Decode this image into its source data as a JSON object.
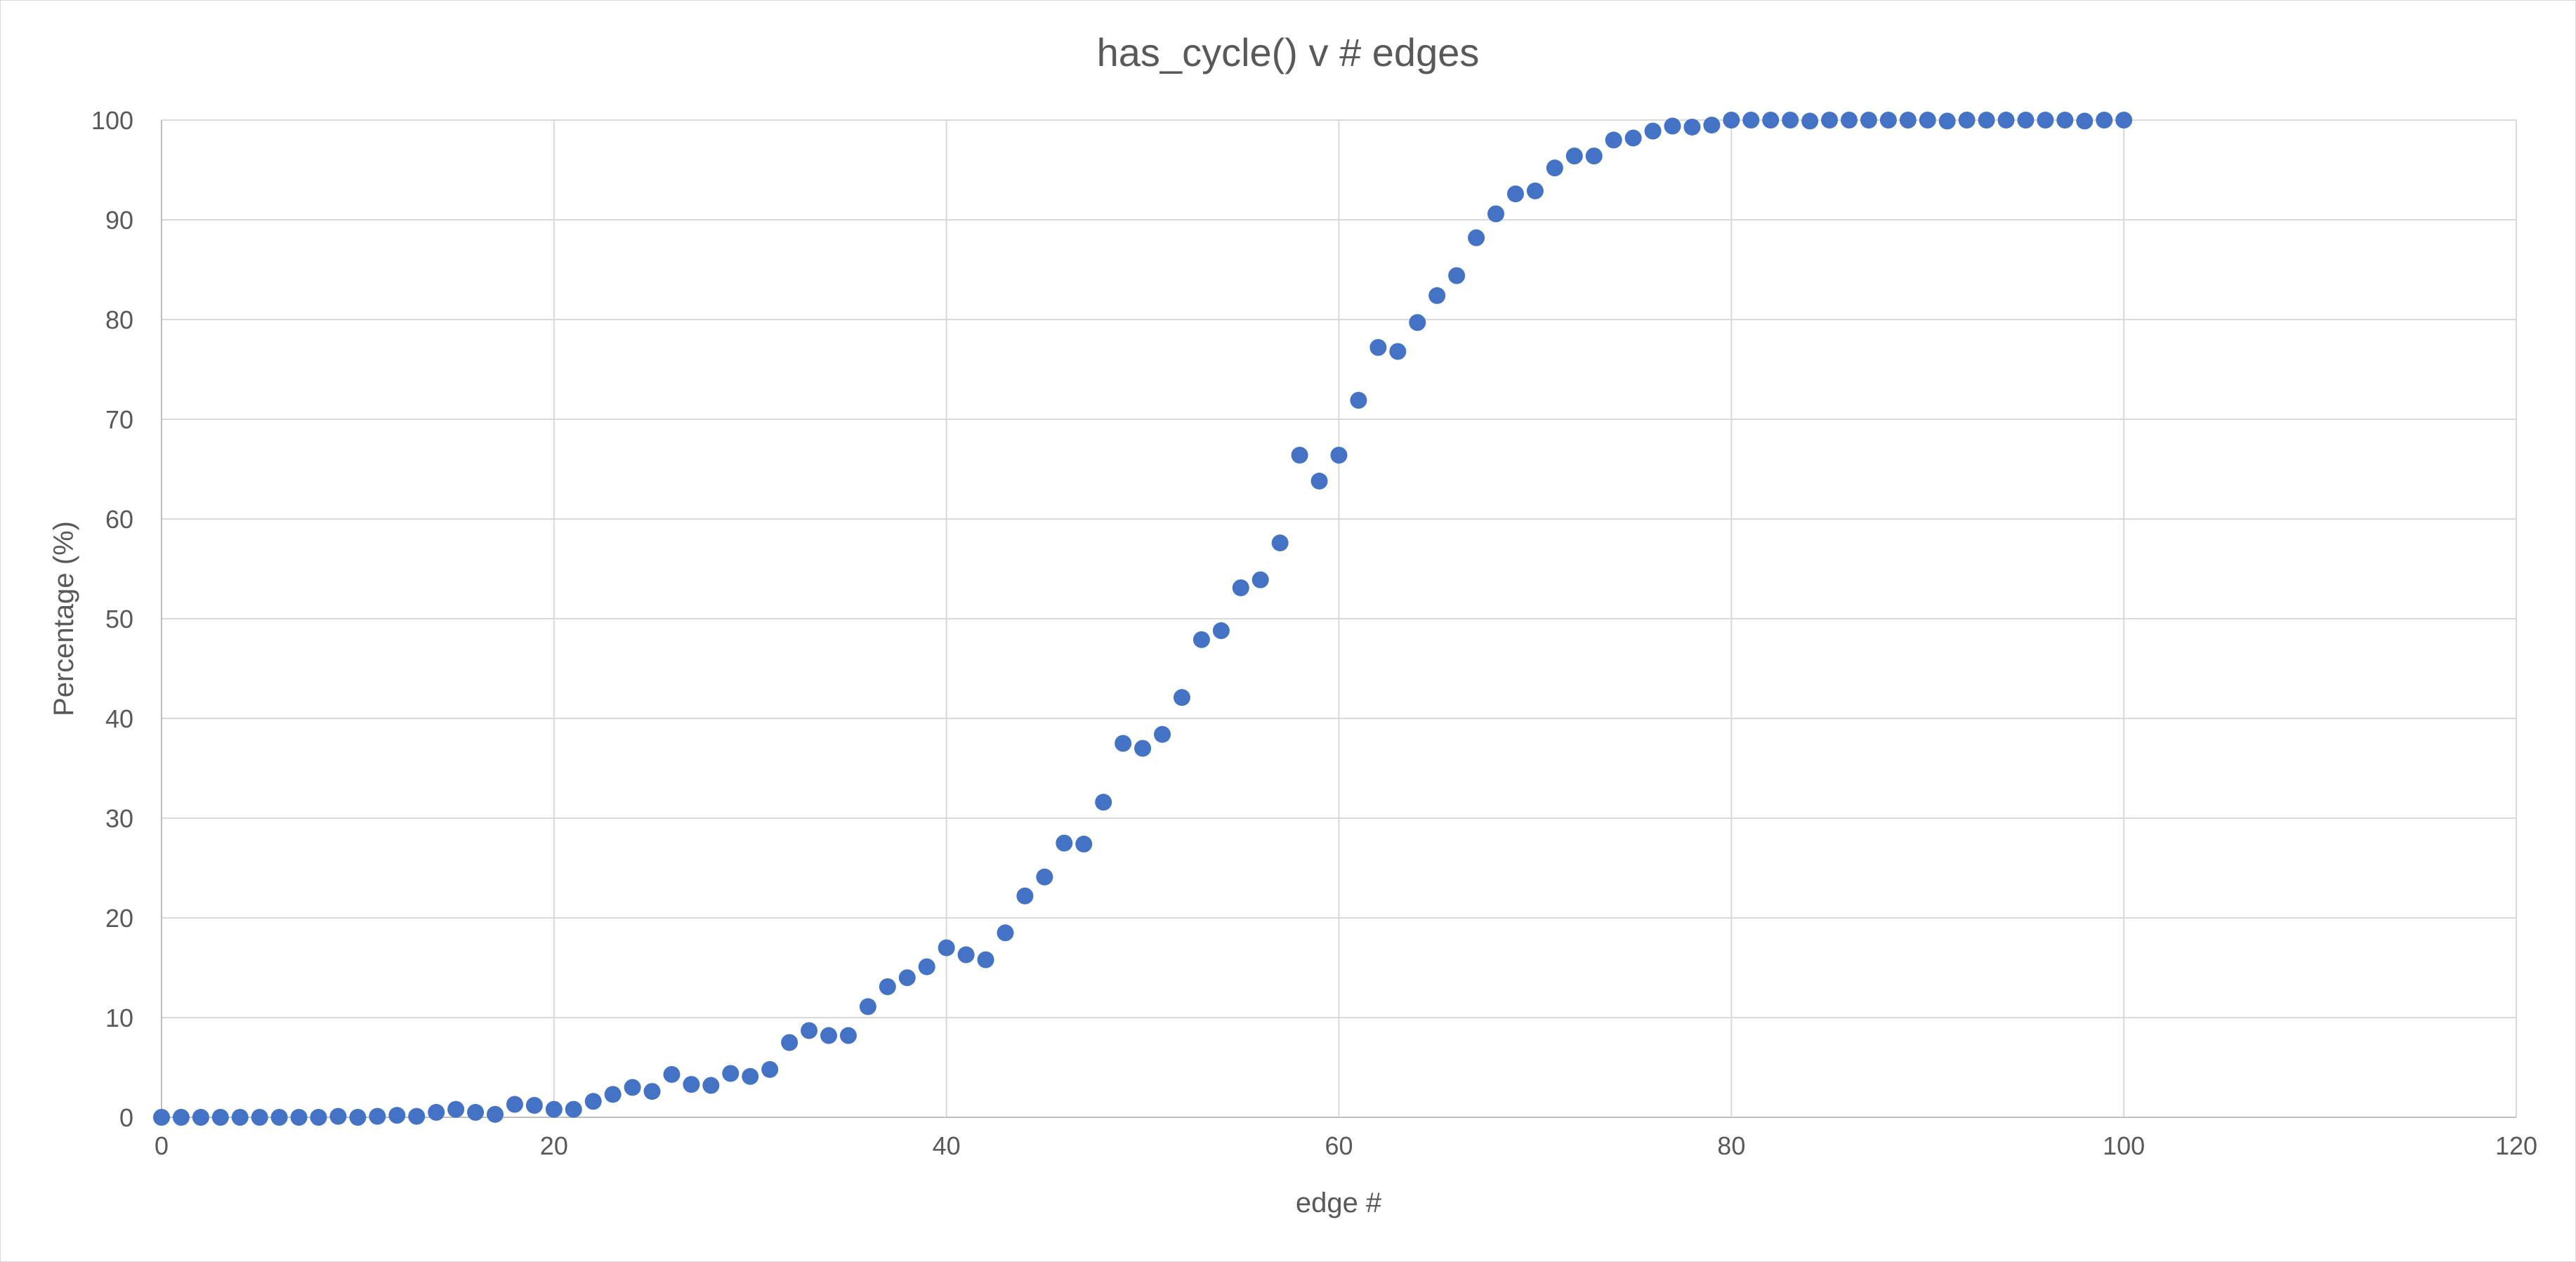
{
  "chart_data": {
    "type": "scatter",
    "title": "has_cycle() v # edges",
    "xlabel": "edge #",
    "ylabel": "Percentage (%)",
    "xlim": [
      0,
      120
    ],
    "ylim": [
      0,
      100
    ],
    "x_ticks": [
      0,
      20,
      40,
      60,
      80,
      100,
      120
    ],
    "y_ticks": [
      0,
      10,
      20,
      30,
      40,
      50,
      60,
      70,
      80,
      90,
      100
    ],
    "grid": true,
    "legend": "none",
    "marker_color": "#4472c4",
    "series": [
      {
        "x": [
          0,
          1,
          2,
          3,
          4,
          5,
          6,
          7,
          8,
          9,
          10,
          11,
          12,
          13,
          14,
          15,
          16,
          17,
          18,
          19,
          20,
          21,
          22,
          23,
          24,
          25,
          26,
          27,
          28,
          29,
          30,
          31,
          32,
          33,
          34,
          35,
          36,
          37,
          38,
          39,
          40,
          41,
          42,
          43,
          44,
          45,
          46,
          47,
          48,
          49,
          50,
          51,
          52,
          53,
          54,
          55,
          56,
          57,
          58,
          59,
          60,
          61,
          62,
          63,
          64,
          65,
          66,
          67,
          68,
          69,
          70,
          71,
          72,
          73,
          74,
          75,
          76,
          77,
          78,
          79,
          80,
          81,
          82,
          83,
          84,
          85,
          86,
          87,
          88,
          89,
          90,
          91,
          92,
          93,
          94,
          95,
          96,
          97,
          98,
          99,
          100
        ],
        "y": [
          0,
          0,
          0,
          0,
          0,
          0,
          0,
          0,
          0,
          0.1,
          0,
          0.1,
          0.2,
          0.1,
          0.5,
          0.8,
          0.5,
          0.3,
          1.3,
          1.2,
          0.8,
          0.8,
          1.6,
          2.3,
          3,
          2.6,
          4.3,
          3.3,
          3.2,
          4.4,
          4.1,
          4.8,
          7.5,
          8.7,
          8.2,
          8.2,
          11.1,
          13.1,
          14,
          15.1,
          17,
          16.3,
          15.8,
          18.5,
          22.2,
          24.1,
          27.5,
          27.4,
          31.6,
          37.5,
          37,
          38.4,
          42.1,
          47.9,
          48.8,
          53.1,
          53.9,
          57.6,
          66.4,
          63.8,
          66.4,
          71.9,
          77.2,
          76.8,
          79.7,
          82.4,
          84.4,
          88.2,
          90.6,
          92.6,
          92.9,
          95.2,
          96.4,
          96.4,
          98,
          98.2,
          98.9,
          99.4,
          99.3,
          99.5,
          100,
          100,
          100,
          100,
          99.9,
          100,
          100,
          100,
          100,
          100,
          100,
          99.9,
          100,
          100,
          100,
          100,
          100,
          100,
          99.9,
          100,
          100
        ]
      }
    ]
  }
}
